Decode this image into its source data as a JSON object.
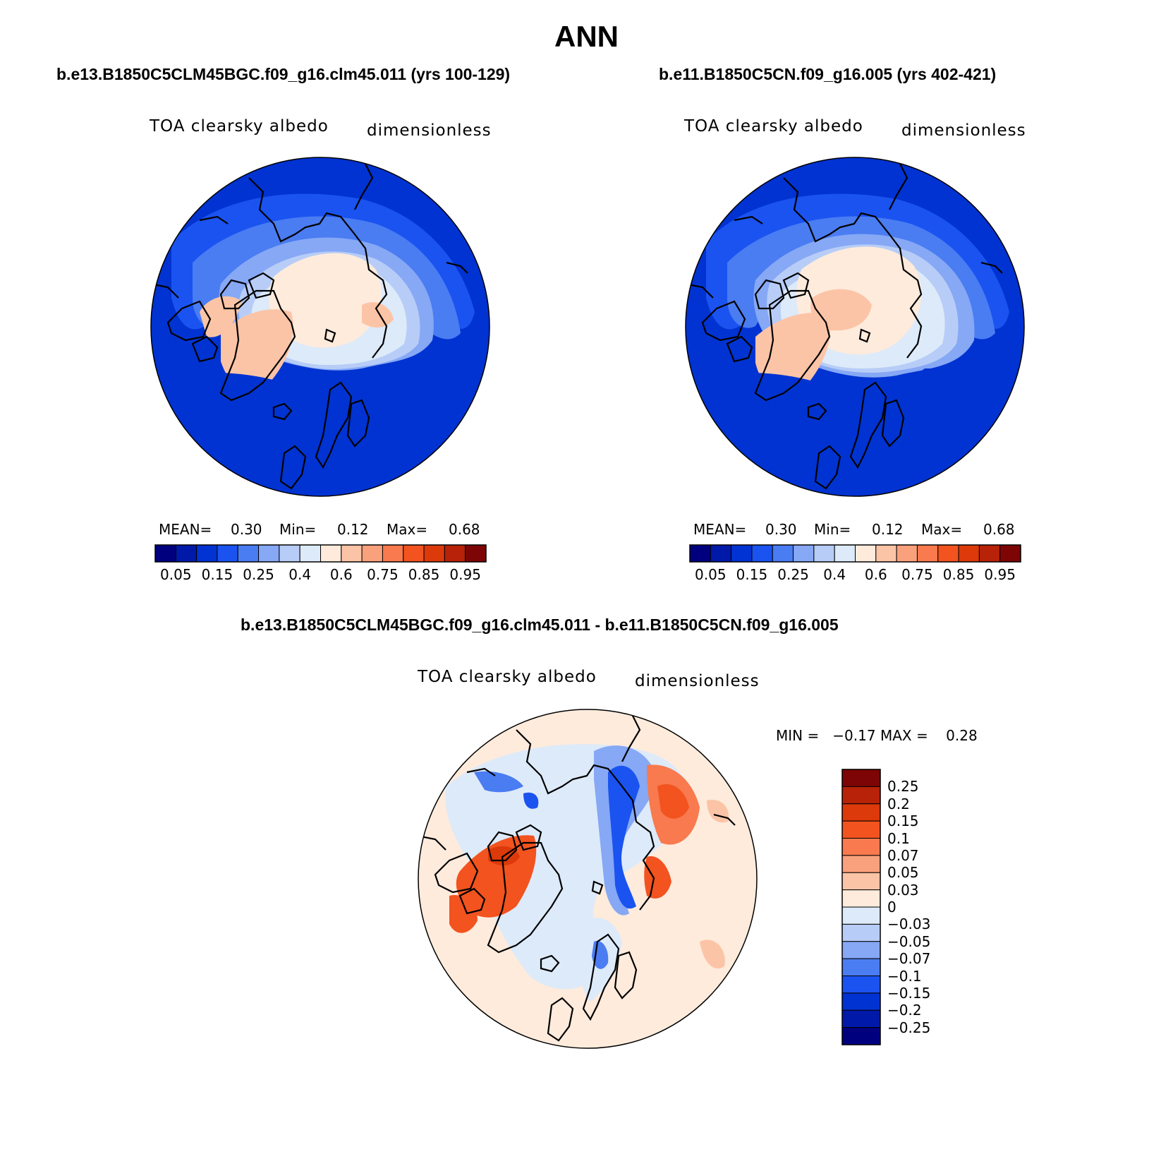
{
  "figure_title": "ANN",
  "panels": [
    {
      "id": "case1",
      "case_title": "b.e13.B1850C5CLM45BGC.f09_g16.clm45.011 (yrs 100-129)",
      "variable": "TOA clearsky albedo",
      "units": "dimensionless",
      "stats": {
        "mean_label": "MEAN=",
        "mean": "0.30",
        "min_label": "Min=",
        "min": "0.12",
        "max_label": "Max=",
        "max": "0.68"
      }
    },
    {
      "id": "case2",
      "case_title": "b.e11.B1850C5CN.f09_g16.005 (yrs 402-421)",
      "variable": "TOA clearsky albedo",
      "units": "dimensionless",
      "stats": {
        "mean_label": "MEAN=",
        "mean": "0.30",
        "min_label": "Min=",
        "min": "0.12",
        "max_label": "Max=",
        "max": "0.68"
      }
    },
    {
      "id": "diff",
      "case_title": "b.e13.B1850C5CLM45BGC.f09_g16.clm45.011 - b.e11.B1850C5CN.f09_g16.005",
      "variable": "TOA clearsky albedo",
      "units": "dimensionless",
      "stats_text": "MIN =   −0.17 MAX =    0.28"
    }
  ],
  "abs_colorbar": {
    "colors": [
      "#00007f",
      "#0019a8",
      "#0033d1",
      "#1a53f0",
      "#4a7cf2",
      "#86a8f5",
      "#b7cdf7",
      "#ddeaf9",
      "#feebdc",
      "#fcc4a6",
      "#f9a07c",
      "#f87a4e",
      "#f2531f",
      "#dc3a0a",
      "#b72208",
      "#7d0505"
    ],
    "tick_labels": [
      "0.05",
      "0.15",
      "0.25",
      "0.4",
      "0.6",
      "0.75",
      "0.85",
      "0.95"
    ]
  },
  "diff_colorbar": {
    "colors": [
      "#7d0505",
      "#b72208",
      "#dc3a0a",
      "#f2531f",
      "#f87a4e",
      "#f9a07c",
      "#fcc4a6",
      "#feebdc",
      "#ddeaf9",
      "#b7cdf7",
      "#86a8f5",
      "#4a7cf2",
      "#1a53f0",
      "#0033d1",
      "#0019a8",
      "#00007f"
    ],
    "tick_labels": [
      "0.25",
      "0.2",
      "0.15",
      "0.1",
      "0.07",
      "0.05",
      "0.03",
      "0",
      "−0.03",
      "−0.05",
      "−0.07",
      "−0.1",
      "−0.15",
      "−0.2",
      "−0.25"
    ]
  }
}
